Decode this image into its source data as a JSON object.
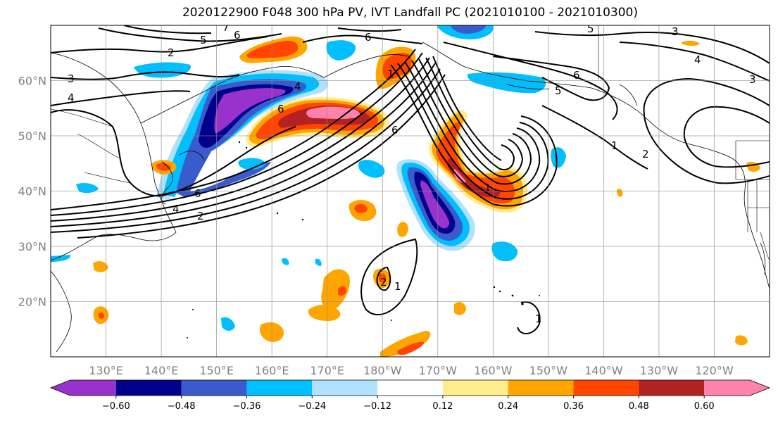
{
  "title": "2020122900 F048 300 hPa PV, IVT Landfall PC (2021010100 - 2021010300)",
  "lat_labels": [
    "60°N",
    "50°N",
    "40°N",
    "30°N",
    "20°N"
  ],
  "lon_labels": [
    "130°E",
    "140°E",
    "150°E",
    "160°E",
    "170°E",
    "180°W",
    "170°W",
    "160°W",
    "150°W",
    "140°W",
    "130°W",
    "120°W"
  ],
  "colorbar": {
    "colors": [
      "#9932cc",
      "#00008b",
      "#3a5bcc",
      "#00bfff",
      "#b0e2ff",
      "#ffffff",
      "#ffec8b",
      "#ffa500",
      "#ff4500",
      "#b22222",
      "#ff82ab"
    ],
    "ticks": [
      "−0.60",
      "−0.48",
      "−0.36",
      "−0.24",
      "−0.12",
      "0.12",
      "0.24",
      "0.36",
      "0.48",
      "0.60"
    ]
  },
  "contour_labels": [
    "2",
    "3",
    "4",
    "5",
    "6",
    "7",
    "6",
    "5",
    "6",
    "3",
    "4",
    "3",
    "6",
    "5",
    "4",
    "1",
    "2",
    "6",
    "1",
    "1",
    "2",
    "1",
    "1",
    "4",
    "2",
    "6"
  ],
  "map_extent": {
    "lon_min": 120,
    "lon_max": 250,
    "lat_min": 10,
    "lat_max": 70
  },
  "fill_colors": {
    "neg_strong": "#9932cc",
    "neg_dark": "#00008b",
    "neg_mid": "#3a5bcc",
    "neg_light": "#00bfff",
    "neg_pale": "#b0e2ff",
    "pos_pale": "#ffec8b",
    "pos_light": "#ffa500",
    "pos_mid": "#ff4500",
    "pos_dark": "#b22222",
    "pos_strong": "#ff82ab"
  }
}
